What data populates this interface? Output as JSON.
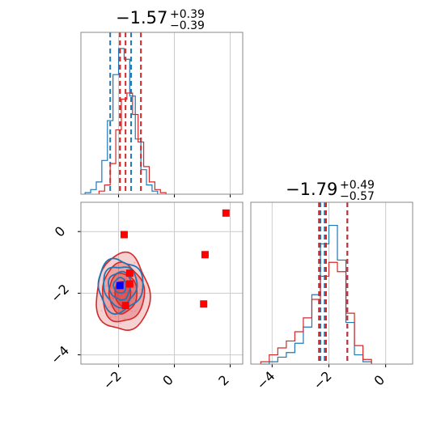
{
  "chart_data": {
    "type": "corner",
    "titles": [
      {
        "param": "x",
        "main": "−1.57",
        "sup": "+0.39",
        "sub": "−0.39"
      },
      {
        "param": "y",
        "main": "−1.79",
        "sup": "+0.49",
        "sub": "−0.57"
      }
    ],
    "xlim": [
      -3.35,
      2.45
    ],
    "ylim": [
      -4.3,
      0.95
    ],
    "x_ticks": [
      -2,
      0,
      2
    ],
    "y_ticks": [
      -4,
      -2,
      0
    ],
    "x_tick_labels": [
      "−2",
      "0",
      "2"
    ],
    "y_tick_labels": [
      "−4",
      "−2",
      "0"
    ],
    "diag_x_ticks": [
      -4,
      -2,
      0
    ],
    "diag_x_tick_labels": [
      "−4",
      "−2",
      "0"
    ],
    "grid": true,
    "colors": {
      "blue": "#1f77b4",
      "red": "#d62728",
      "fill_red": "#e8797a"
    },
    "series": [
      {
        "color": "blue",
        "quantiles_x": [
          -2.3,
          -1.95,
          -1.55
        ],
        "quantiles_y": [
          -2.3,
          -2.15,
          -1.35
        ],
        "hist_x_bins": [
          -3.2,
          -3.0,
          -2.8,
          -2.6,
          -2.4,
          -2.2,
          -2.0,
          -1.8,
          -1.6,
          -1.4,
          -1.2,
          -1.0,
          -0.8,
          -0.6
        ],
        "hist_x_counts": [
          1,
          3,
          8,
          22,
          48,
          78,
          95,
          88,
          64,
          36,
          16,
          6,
          2
        ],
        "hist_y_bins": [
          -4.4,
          -4.1,
          -3.8,
          -3.5,
          -3.2,
          -2.9,
          -2.6,
          -2.3,
          -2.0,
          -1.7,
          -1.4,
          -1.1,
          -0.8,
          -0.5
        ],
        "hist_y_counts": [
          0,
          1,
          3,
          5,
          9,
          16,
          30,
          52,
          60,
          45,
          18,
          4,
          1
        ]
      },
      {
        "color": "red",
        "quantiles_x": [
          -1.95,
          -1.75,
          -1.2
        ],
        "quantiles_y": [
          -2.35,
          -2.1,
          -1.35
        ],
        "hist_x_bins": [
          -2.7,
          -2.5,
          -2.3,
          -2.1,
          -1.9,
          -1.7,
          -1.5,
          -1.3,
          -1.1,
          -0.9,
          -0.7,
          -0.5,
          -0.3
        ],
        "hist_x_counts": [
          2,
          6,
          20,
          42,
          62,
          66,
          52,
          34,
          18,
          8,
          3,
          1
        ],
        "hist_y_bins": [
          -4.4,
          -4.1,
          -3.8,
          -3.5,
          -3.2,
          -2.9,
          -2.6,
          -2.3,
          -2.0,
          -1.7,
          -1.4,
          -1.1,
          -0.8,
          -0.5
        ],
        "hist_y_counts": [
          1,
          4,
          7,
          10,
          14,
          20,
          28,
          38,
          44,
          40,
          22,
          8,
          2
        ]
      }
    ],
    "markers": [
      {
        "x": -1.8,
        "y": -0.1,
        "color": "red"
      },
      {
        "x": -1.6,
        "y": -1.35,
        "color": "red"
      },
      {
        "x": -1.6,
        "y": -1.7,
        "color": "red"
      },
      {
        "x": -1.75,
        "y": -2.4,
        "color": "red"
      },
      {
        "x": 1.1,
        "y": -0.75,
        "color": "red"
      },
      {
        "x": 1.05,
        "y": -2.35,
        "color": "red"
      },
      {
        "x": 1.85,
        "y": 0.6,
        "color": "red"
      },
      {
        "x": -1.95,
        "y": -1.75,
        "color": "blue"
      }
    ]
  }
}
